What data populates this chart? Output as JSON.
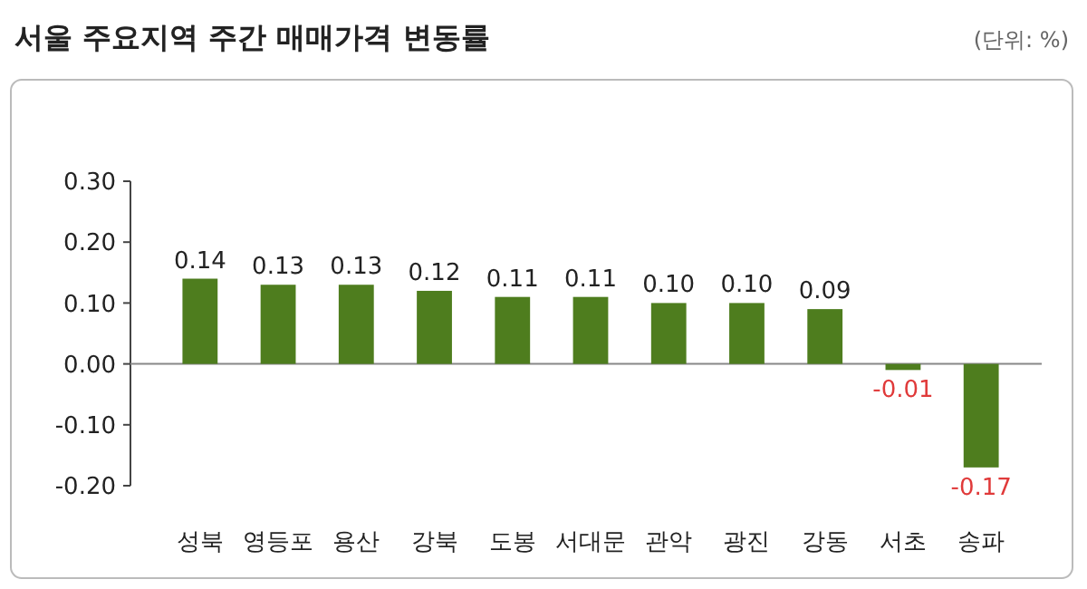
{
  "chart_data": {
    "type": "bar",
    "title": "서울 주요지역 주간 매매가격 변동률",
    "annotations": [
      "(단위: %)"
    ],
    "categories": [
      "성북",
      "영등포",
      "용산",
      "강북",
      "도봉",
      "서대문",
      "관악",
      "광진",
      "강동",
      "서초",
      "송파"
    ],
    "values": [
      0.14,
      0.13,
      0.13,
      0.12,
      0.11,
      0.11,
      0.1,
      0.1,
      0.09,
      -0.01,
      -0.17
    ],
    "color": "#4e7d1e",
    "ylim": [
      -0.2,
      0.3
    ],
    "yticks": [
      {
        "value": 0.3,
        "label": "0.30"
      },
      {
        "value": 0.2,
        "label": "0.20"
      },
      {
        "value": 0.1,
        "label": "0.10"
      },
      {
        "value": 0,
        "label": "0.00"
      },
      {
        "value": -0.1,
        "label": "-0.10"
      },
      {
        "value": -0.2,
        "label": "-0.20"
      }
    ],
    "value_labels": [
      "0.14",
      "0.13",
      "0.13",
      "0.12",
      "0.11",
      "0.11",
      "0.10",
      "0.10",
      "0.09",
      "-0.01",
      "-0.17"
    ]
  }
}
